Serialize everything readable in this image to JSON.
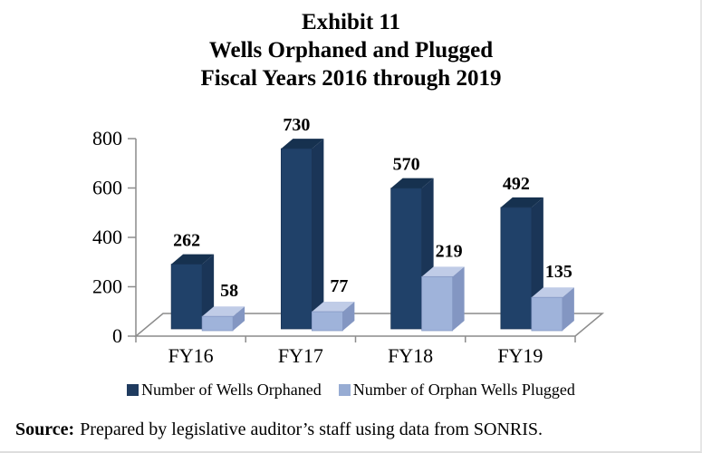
{
  "title": {
    "lines": [
      "Exhibit 11",
      "Wells Orphaned and Plugged",
      "Fiscal Years 2016 through 2019"
    ]
  },
  "chart_data": {
    "type": "bar",
    "style": "3d-clustered-column",
    "title": "Exhibit 11 - Wells Orphaned and Plugged - Fiscal Years 2016 through 2019",
    "categories": [
      "FY16",
      "FY17",
      "FY18",
      "FY19"
    ],
    "series": [
      {
        "name": "Number of Wells Orphaned",
        "values": [
          262,
          730,
          570,
          492
        ],
        "colors": {
          "front": "#204169",
          "top": "#16314F",
          "side": "#1A3557"
        }
      },
      {
        "name": "Number of Orphan Wells Plugged",
        "values": [
          58,
          77,
          219,
          135
        ],
        "colors": {
          "front": "#9FB3DA",
          "top": "#C0CCE7",
          "side": "#8396C2"
        }
      }
    ],
    "xlabel": "",
    "ylabel": "",
    "ylim": [
      0,
      800
    ],
    "yticks": [
      0,
      200,
      400,
      600,
      800
    ],
    "data_labels": true,
    "grid": false,
    "legend_position": "bottom",
    "axis_color": "#8C8C8C",
    "label_color": "#000000"
  },
  "legend": {
    "items": [
      {
        "label": "Number of Wells Orphaned",
        "swatch": "#1F3B5F"
      },
      {
        "label": "Number of Orphan Wells Plugged",
        "swatch": "#97ACD3"
      }
    ]
  },
  "source": {
    "label": "Source:",
    "text": "Prepared by legislative auditor’s staff using data from SONRIS."
  }
}
